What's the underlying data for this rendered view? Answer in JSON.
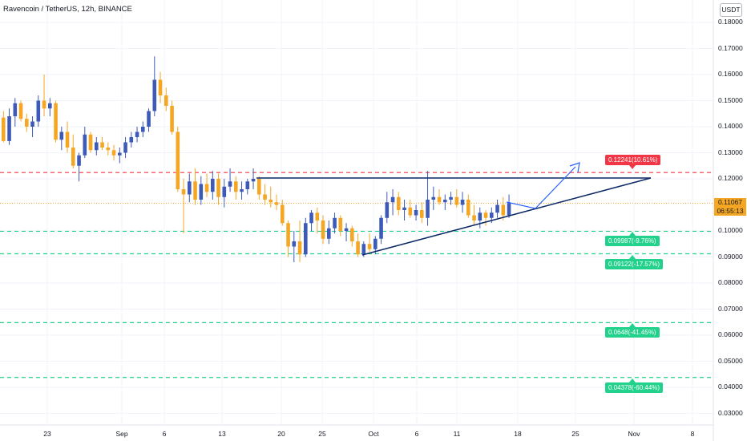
{
  "header": {
    "title": "Ravencoin / TetherUS, 12h, BINANCE",
    "currency": "USDT"
  },
  "price_axis": {
    "ticks": [
      "0.18000",
      "0.17000",
      "0.16000",
      "0.15000",
      "0.14000",
      "0.13000",
      "0.12000",
      "0.10000",
      "0.09000",
      "0.08000",
      "0.07000",
      "0.06000",
      "0.05000",
      "0.04000",
      "0.03000"
    ]
  },
  "time_axis": {
    "ticks": [
      "23",
      "Sep",
      "6",
      "13",
      "20",
      "25",
      "Oct",
      "6",
      "11",
      "18",
      "25",
      "Nov",
      "8"
    ]
  },
  "current_price": {
    "value": "0.11067",
    "countdown": "06:55:13"
  },
  "levels": [
    {
      "label": "0.12241(10.61%)",
      "value": 0.12241,
      "color": "#f23645"
    },
    {
      "label": "0.09987(-9.76%)",
      "value": 0.09987,
      "color": "#22d18b"
    },
    {
      "label": "0.09122(-17.57%)",
      "value": 0.09122,
      "color": "#22d18b"
    },
    {
      "label": "0.0648(-41.45%)",
      "value": 0.0648,
      "color": "#22d18b"
    },
    {
      "label": "0.04378(-60.44%)",
      "value": 0.04378,
      "color": "#22d18b"
    }
  ],
  "chart_data": {
    "type": "candlestick",
    "title": "Ravencoin / TetherUS, 12h, BINANCE",
    "colors": {
      "up": "#3d5ab8",
      "down": "#f5a623"
    },
    "ylim": [
      0.028,
      0.185
    ],
    "candles": [
      [
        0.1435,
        0.146,
        0.134,
        0.1345
      ],
      [
        0.1345,
        0.147,
        0.133,
        0.144
      ],
      [
        0.144,
        0.151,
        0.14,
        0.149
      ],
      [
        0.149,
        0.15,
        0.142,
        0.143
      ],
      [
        0.143,
        0.145,
        0.138,
        0.14
      ],
      [
        0.14,
        0.144,
        0.136,
        0.142
      ],
      [
        0.142,
        0.152,
        0.14,
        0.15
      ],
      [
        0.15,
        0.16,
        0.144,
        0.147
      ],
      [
        0.147,
        0.151,
        0.144,
        0.149
      ],
      [
        0.149,
        0.15,
        0.134,
        0.135
      ],
      [
        0.135,
        0.14,
        0.131,
        0.138
      ],
      [
        0.138,
        0.142,
        0.13,
        0.132
      ],
      [
        0.132,
        0.137,
        0.124,
        0.125
      ],
      [
        0.125,
        0.13,
        0.119,
        0.129
      ],
      [
        0.129,
        0.14,
        0.128,
        0.137
      ],
      [
        0.137,
        0.138,
        0.13,
        0.131
      ],
      [
        0.131,
        0.136,
        0.129,
        0.134
      ],
      [
        0.134,
        0.136,
        0.131,
        0.132
      ],
      [
        0.132,
        0.134,
        0.129,
        0.131
      ],
      [
        0.131,
        0.133,
        0.127,
        0.129
      ],
      [
        0.129,
        0.132,
        0.126,
        0.13
      ],
      [
        0.13,
        0.136,
        0.128,
        0.134
      ],
      [
        0.134,
        0.138,
        0.132,
        0.136
      ],
      [
        0.136,
        0.14,
        0.134,
        0.138
      ],
      [
        0.138,
        0.142,
        0.136,
        0.14
      ],
      [
        0.14,
        0.147,
        0.138,
        0.146
      ],
      [
        0.146,
        0.167,
        0.144,
        0.158
      ],
      [
        0.158,
        0.161,
        0.149,
        0.152
      ],
      [
        0.152,
        0.155,
        0.146,
        0.148
      ],
      [
        0.148,
        0.15,
        0.137,
        0.138
      ],
      [
        0.138,
        0.14,
        0.115,
        0.116
      ],
      [
        0.116,
        0.12,
        0.099,
        0.114
      ],
      [
        0.114,
        0.122,
        0.111,
        0.119
      ],
      [
        0.119,
        0.124,
        0.11,
        0.112
      ],
      [
        0.112,
        0.121,
        0.11,
        0.118
      ],
      [
        0.118,
        0.122,
        0.113,
        0.115
      ],
      [
        0.115,
        0.123,
        0.112,
        0.12
      ],
      [
        0.12,
        0.122,
        0.11,
        0.113
      ],
      [
        0.113,
        0.12,
        0.109,
        0.117
      ],
      [
        0.117,
        0.124,
        0.115,
        0.119
      ],
      [
        0.119,
        0.121,
        0.112,
        0.115
      ],
      [
        0.115,
        0.119,
        0.112,
        0.116
      ],
      [
        0.116,
        0.12,
        0.114,
        0.119
      ],
      [
        0.119,
        0.124,
        0.116,
        0.12
      ],
      [
        0.12,
        0.121,
        0.112,
        0.114
      ],
      [
        0.114,
        0.118,
        0.11,
        0.112
      ],
      [
        0.112,
        0.117,
        0.109,
        0.111
      ],
      [
        0.111,
        0.114,
        0.108,
        0.11
      ],
      [
        0.11,
        0.112,
        0.102,
        0.103
      ],
      [
        0.103,
        0.104,
        0.09,
        0.094
      ],
      [
        0.094,
        0.1,
        0.088,
        0.096
      ],
      [
        0.096,
        0.104,
        0.088,
        0.091
      ],
      [
        0.091,
        0.105,
        0.09,
        0.103
      ],
      [
        0.103,
        0.108,
        0.1,
        0.107
      ],
      [
        0.107,
        0.109,
        0.099,
        0.104
      ],
      [
        0.104,
        0.106,
        0.095,
        0.097
      ],
      [
        0.097,
        0.104,
        0.095,
        0.101
      ],
      [
        0.101,
        0.107,
        0.099,
        0.105
      ],
      [
        0.105,
        0.106,
        0.098,
        0.1
      ],
      [
        0.1,
        0.103,
        0.096,
        0.101
      ],
      [
        0.101,
        0.102,
        0.094,
        0.096
      ],
      [
        0.096,
        0.099,
        0.09,
        0.091
      ],
      [
        0.091,
        0.096,
        0.09,
        0.095
      ],
      [
        0.095,
        0.099,
        0.092,
        0.093
      ],
      [
        0.093,
        0.098,
        0.091,
        0.097
      ],
      [
        0.097,
        0.106,
        0.095,
        0.105
      ],
      [
        0.105,
        0.115,
        0.103,
        0.111
      ],
      [
        0.111,
        0.116,
        0.106,
        0.113
      ],
      [
        0.113,
        0.115,
        0.106,
        0.108
      ],
      [
        0.108,
        0.112,
        0.104,
        0.109
      ],
      [
        0.109,
        0.112,
        0.105,
        0.106
      ],
      [
        0.106,
        0.11,
        0.104,
        0.108
      ],
      [
        0.108,
        0.111,
        0.103,
        0.105
      ],
      [
        0.105,
        0.123,
        0.102,
        0.112
      ],
      [
        0.112,
        0.117,
        0.108,
        0.113
      ],
      [
        0.113,
        0.116,
        0.11,
        0.111
      ],
      [
        0.111,
        0.114,
        0.108,
        0.112
      ],
      [
        0.112,
        0.115,
        0.11,
        0.113
      ],
      [
        0.113,
        0.116,
        0.109,
        0.11
      ],
      [
        0.11,
        0.115,
        0.107,
        0.112
      ],
      [
        0.112,
        0.114,
        0.105,
        0.106
      ],
      [
        0.106,
        0.11,
        0.102,
        0.104
      ],
      [
        0.104,
        0.109,
        0.101,
        0.107
      ],
      [
        0.107,
        0.108,
        0.102,
        0.105
      ],
      [
        0.105,
        0.109,
        0.103,
        0.107
      ],
      [
        0.107,
        0.112,
        0.105,
        0.11
      ],
      [
        0.11,
        0.113,
        0.104,
        0.106
      ],
      [
        0.106,
        0.114,
        0.105,
        0.1107
      ]
    ],
    "horizontal_levels": [
      0.12241,
      0.09987,
      0.09122,
      0.0648,
      0.04378
    ],
    "current_price": 0.11067
  }
}
